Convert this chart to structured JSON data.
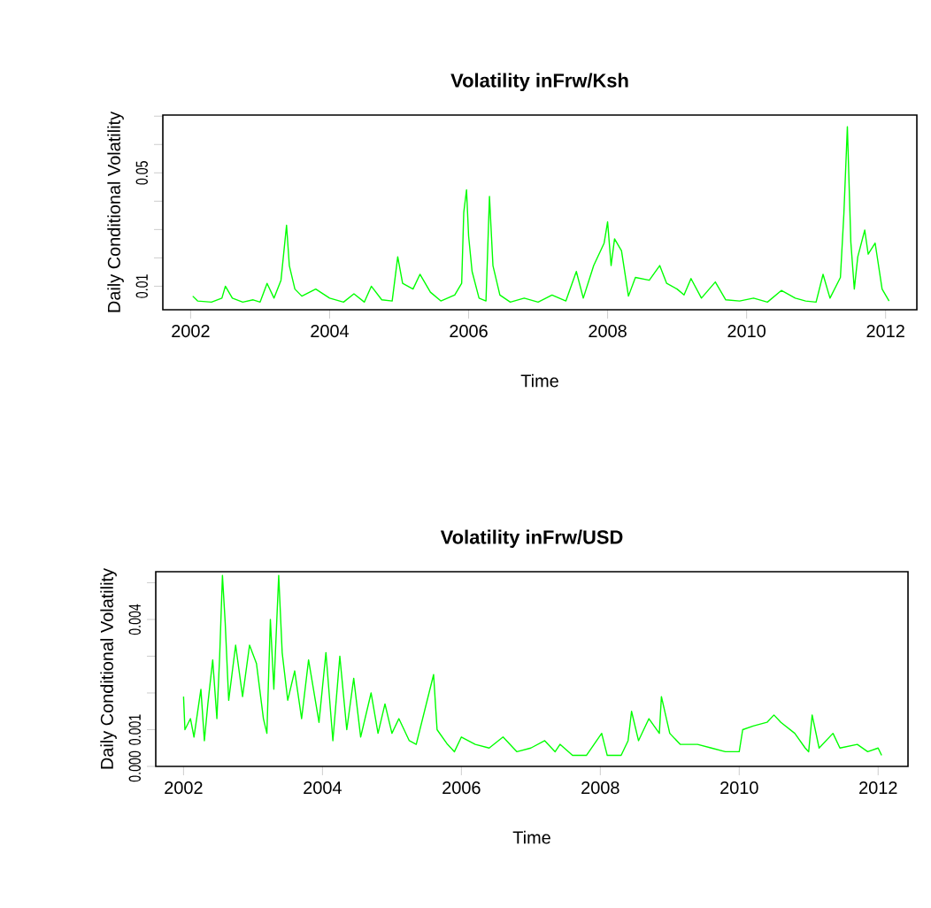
{
  "chart_data": [
    {
      "type": "line",
      "title": "Volatility inFrw/Ksh",
      "xlabel": "Time",
      "ylabel": "Daily Conditional Volatility",
      "color": "#00ff00",
      "xlim": [
        2001.6,
        2012.45
      ],
      "ylim": [
        0.0017,
        0.0704
      ],
      "xticks": [
        2002,
        2004,
        2006,
        2008,
        2010,
        2012
      ],
      "yticks": [
        0.01,
        {
          "value": 0.02,
          "label": null
        },
        {
          "value": 0.03,
          "label": null
        },
        {
          "value": 0.04,
          "label": null
        },
        0.05,
        {
          "value": 0.06,
          "label": null
        },
        {
          "value": 0.07,
          "label": null
        }
      ],
      "x": [
        2002.03,
        2002.1,
        2002.3,
        2002.45,
        2002.5,
        2002.6,
        2002.75,
        2002.9,
        2003.0,
        2003.1,
        2003.2,
        2003.3,
        2003.38,
        2003.42,
        2003.5,
        2003.6,
        2003.8,
        2004.0,
        2004.2,
        2004.35,
        2004.5,
        2004.6,
        2004.75,
        2004.9,
        2004.98,
        2005.05,
        2005.2,
        2005.3,
        2005.45,
        2005.6,
        2005.8,
        2005.9,
        2005.93,
        2005.97,
        2006.0,
        2006.05,
        2006.15,
        2006.25,
        2006.3,
        2006.35,
        2006.45,
        2006.6,
        2006.8,
        2007.0,
        2007.2,
        2007.4,
        2007.55,
        2007.65,
        2007.8,
        2007.95,
        2008.0,
        2008.05,
        2008.1,
        2008.2,
        2008.3,
        2008.4,
        2008.6,
        2008.75,
        2008.85,
        2009.0,
        2009.1,
        2009.2,
        2009.35,
        2009.55,
        2009.7,
        2009.9,
        2010.1,
        2010.3,
        2010.5,
        2010.7,
        2010.85,
        2011.0,
        2011.1,
        2011.2,
        2011.35,
        2011.4,
        2011.45,
        2011.5,
        2011.55,
        2011.6,
        2011.7,
        2011.75,
        2011.85,
        2011.95,
        2012.05
      ],
      "values": [
        0.0065,
        0.0048,
        0.0044,
        0.0058,
        0.01,
        0.0058,
        0.0044,
        0.0052,
        0.0044,
        0.011,
        0.0058,
        0.0121,
        0.0315,
        0.0173,
        0.009,
        0.0065,
        0.009,
        0.0058,
        0.0044,
        0.0073,
        0.0044,
        0.01,
        0.0052,
        0.0048,
        0.0204,
        0.011,
        0.009,
        0.0142,
        0.0079,
        0.0048,
        0.0069,
        0.011,
        0.036,
        0.044,
        0.0277,
        0.0152,
        0.0058,
        0.0048,
        0.0417,
        0.0173,
        0.0069,
        0.0044,
        0.0058,
        0.0044,
        0.0069,
        0.0048,
        0.0152,
        0.0058,
        0.0173,
        0.0252,
        0.0327,
        0.0173,
        0.0267,
        0.0225,
        0.0065,
        0.0131,
        0.0121,
        0.0173,
        0.011,
        0.009,
        0.0069,
        0.0127,
        0.0058,
        0.0115,
        0.0052,
        0.0048,
        0.0058,
        0.0044,
        0.0085,
        0.0058,
        0.0048,
        0.0044,
        0.0142,
        0.0058,
        0.0131,
        0.0356,
        0.0663,
        0.0256,
        0.009,
        0.0204,
        0.0298,
        0.0213,
        0.0252,
        0.009,
        0.0048
      ]
    },
    {
      "type": "line",
      "title": "Volatility inFrw/USD",
      "xlabel": "Time",
      "ylabel": "Daily Conditional Volatility",
      "color": "#00ff00",
      "xlim": [
        2001.6,
        2012.43
      ],
      "ylim": [
        0.0,
        0.0053
      ],
      "xticks": [
        2002,
        2004,
        2006,
        2008,
        2010,
        2012
      ],
      "yticks": [
        {
          "value": 0.0,
          "label": "0.000"
        },
        {
          "value": 0.001,
          "label": "0.001"
        },
        {
          "value": 0.002,
          "label": null
        },
        {
          "value": 0.003,
          "label": null
        },
        {
          "value": 0.004,
          "label": "0.004"
        },
        {
          "value": 0.005,
          "label": null
        }
      ],
      "x": [
        2002.0,
        2002.02,
        2002.1,
        2002.15,
        2002.25,
        2002.3,
        2002.35,
        2002.42,
        2002.48,
        2002.52,
        2002.56,
        2002.6,
        2002.65,
        2002.75,
        2002.85,
        2002.95,
        2003.05,
        2003.15,
        2003.2,
        2003.25,
        2003.3,
        2003.37,
        2003.42,
        2003.5,
        2003.6,
        2003.7,
        2003.8,
        2003.95,
        2004.05,
        2004.15,
        2004.25,
        2004.35,
        2004.45,
        2004.55,
        2004.7,
        2004.8,
        2004.9,
        2005.0,
        2005.1,
        2005.25,
        2005.35,
        2005.6,
        2005.65,
        2005.8,
        2005.9,
        2006.0,
        2006.2,
        2006.4,
        2006.6,
        2006.8,
        2007.0,
        2007.2,
        2007.35,
        2007.42,
        2007.6,
        2007.8,
        2008.02,
        2008.1,
        2008.3,
        2008.4,
        2008.45,
        2008.55,
        2008.7,
        2008.85,
        2008.88,
        2009.0,
        2009.15,
        2009.4,
        2009.6,
        2009.8,
        2010.0,
        2010.05,
        2010.2,
        2010.4,
        2010.5,
        2010.6,
        2010.8,
        2010.95,
        2011.0,
        2011.05,
        2011.15,
        2011.35,
        2011.45,
        2011.7,
        2011.85,
        2012.0,
        2012.05
      ],
      "values": [
        0.0019,
        0.001,
        0.0013,
        0.0008,
        0.0021,
        0.0007,
        0.0017,
        0.0029,
        0.0013,
        0.003,
        0.0052,
        0.0039,
        0.0018,
        0.0033,
        0.0019,
        0.0033,
        0.0028,
        0.0013,
        0.0009,
        0.004,
        0.0021,
        0.0052,
        0.0031,
        0.0018,
        0.0026,
        0.0013,
        0.0029,
        0.0012,
        0.0031,
        0.0007,
        0.003,
        0.001,
        0.0024,
        0.0008,
        0.002,
        0.0009,
        0.0017,
        0.0009,
        0.0013,
        0.0007,
        0.0006,
        0.0025,
        0.001,
        0.0006,
        0.0004,
        0.0008,
        0.0006,
        0.0005,
        0.0008,
        0.0004,
        0.0005,
        0.0007,
        0.0004,
        0.0006,
        0.0003,
        0.0003,
        0.0009,
        0.0003,
        0.0003,
        0.0007,
        0.0015,
        0.0007,
        0.0013,
        0.0009,
        0.0019,
        0.0009,
        0.0006,
        0.0006,
        0.0005,
        0.0004,
        0.0004,
        0.001,
        0.0011,
        0.0012,
        0.0014,
        0.0012,
        0.0009,
        0.0005,
        0.0004,
        0.0014,
        0.0005,
        0.0009,
        0.0005,
        0.0006,
        0.0004,
        0.0005,
        0.0003
      ]
    }
  ]
}
